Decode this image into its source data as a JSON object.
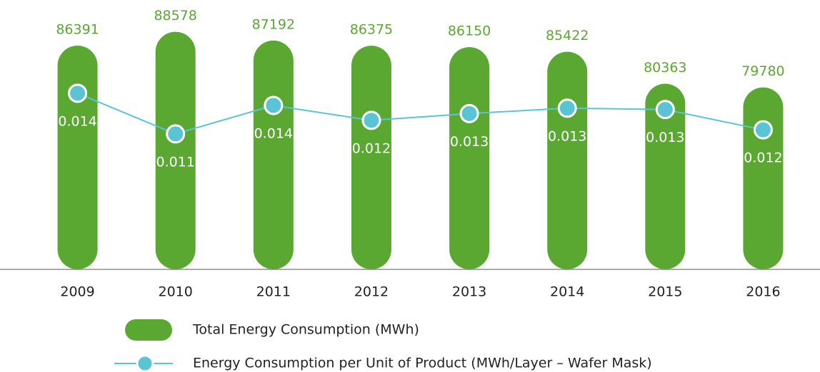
{
  "chart_data": {
    "type": "bar",
    "categories": [
      "2009",
      "2010",
      "2011",
      "2012",
      "2013",
      "2014",
      "2015",
      "2016"
    ],
    "series": [
      {
        "name": "Total Energy Consumption (MWh)",
        "color": "#5aa832",
        "type": "bar",
        "values": [
          86391,
          88578,
          87192,
          86375,
          86150,
          85422,
          80363,
          79780
        ]
      },
      {
        "name": "Energy Consumption per Unit of Product (MWh/Layer – Wafer Mask)",
        "color": "#5bc4d4",
        "type": "line",
        "axis": "y2",
        "values": [
          0.0144,
          0.0114,
          0.0135,
          0.0124,
          0.0129,
          0.0133,
          0.0132,
          0.0117
        ],
        "value_labels": [
          "0.014",
          "0.011",
          "0.014",
          "0.012",
          "0.013",
          "0.013",
          "0.013",
          "0.012"
        ]
      }
    ],
    "ylim": [
      51000,
      90000
    ],
    "y2lim": [
      0.0014,
      0.0196
    ],
    "legend": "bottom"
  }
}
